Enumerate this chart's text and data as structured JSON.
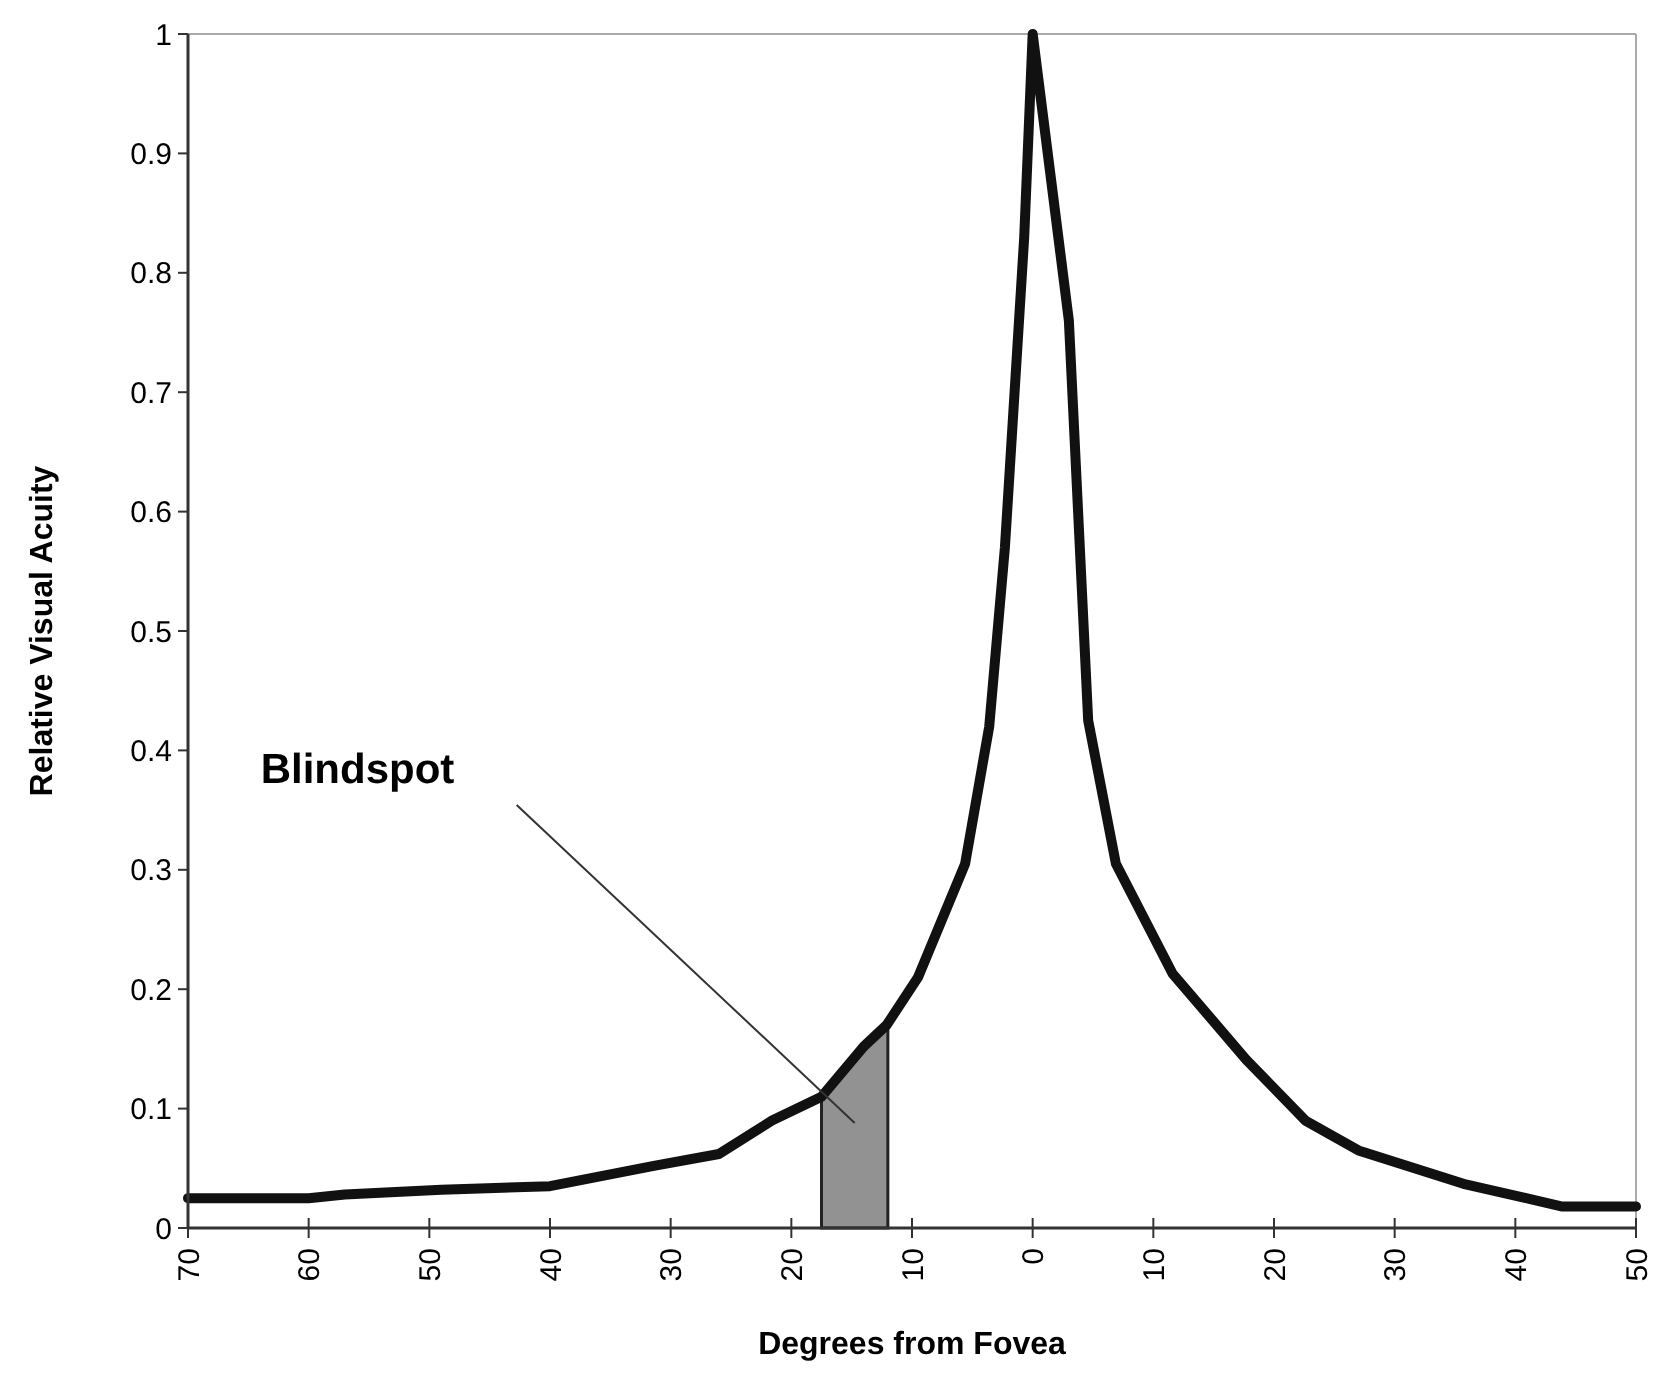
{
  "chart_data": {
    "type": "line",
    "xlabel": "Degrees from Fovea",
    "ylabel": "Relative Visual Acuity",
    "x": [
      -70,
      -60,
      -57,
      -49,
      -40,
      -31.4,
      -26,
      -21.6,
      -17.5,
      -14,
      -12.1,
      -9.5,
      -5.6,
      -3.6,
      -2.3,
      -0.7,
      0,
      3,
      4.6,
      6.9,
      11.6,
      17.7,
      22.6,
      27,
      35.7,
      43.9,
      50
    ],
    "series": [
      {
        "type": "area",
        "color": "#929292",
        "x": [
          -17.5,
          -14,
          -12.1,
          -12
        ],
        "values": [
          0.11,
          0.152,
          0.17,
          0.171
        ]
      },
      {
        "color": "#111111",
        "values": [
          0.025,
          0.025,
          0.028,
          0.032,
          0.035,
          0.052,
          0.062,
          0.09,
          0.11,
          0.152,
          0.17,
          0.21,
          0.305,
          0.42,
          0.57,
          0.83,
          1,
          0.76,
          0.425,
          0.305,
          0.213,
          0.141,
          0.09,
          0.065,
          0.037,
          0.018,
          0.018
        ]
      }
    ],
    "xlim": [
      -70,
      50
    ],
    "xticks": [
      {
        "value": -70,
        "label": "70"
      },
      {
        "value": -60,
        "label": "60"
      },
      {
        "value": -50,
        "label": "50"
      },
      {
        "value": -40,
        "label": "40"
      },
      {
        "value": -30,
        "label": "30"
      },
      {
        "value": -20,
        "label": "20"
      },
      {
        "value": -10,
        "label": "10"
      },
      0,
      10,
      20,
      30,
      40,
      50
    ],
    "ylim": [
      0,
      1
    ],
    "yticks": [
      0,
      0.1,
      0.2,
      0.3,
      0.4,
      0.5,
      0.6,
      0.7,
      0.8,
      0.9,
      1
    ],
    "annotations": [
      "Blindspot"
    ],
    "grid": false,
    "marker": "none",
    "line_style": "solid"
  }
}
